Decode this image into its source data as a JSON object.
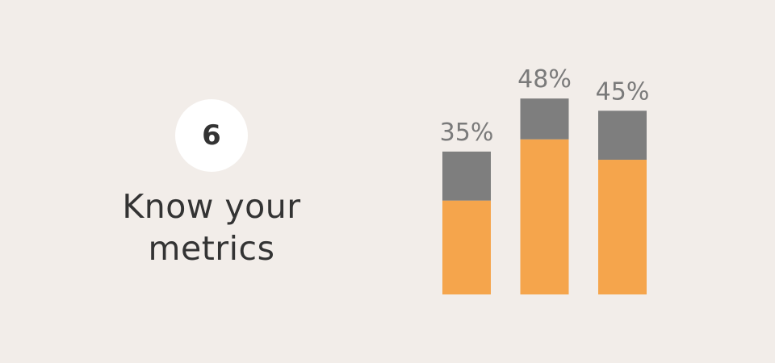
{
  "step": {
    "number": "6"
  },
  "headline": {
    "line1": "Know your",
    "line2": "metrics"
  },
  "colors": {
    "background": "#f2ede9",
    "badge": "#ffffff",
    "text": "#333333",
    "base_segment": "#f5a54c",
    "top_segment": "#7e7e7e",
    "label": "#7a7a7a"
  },
  "chart_data": {
    "type": "bar",
    "stacked": true,
    "categories": [
      "",
      "",
      ""
    ],
    "labels": [
      "35%",
      "48%",
      "45%"
    ],
    "series": [
      {
        "name": "",
        "values": [
          23,
          38,
          33
        ],
        "color": "#f5a54c"
      },
      {
        "name": "",
        "values": [
          12,
          10,
          12
        ],
        "color": "#7e7e7e"
      }
    ],
    "ylim": [
      0,
      50
    ],
    "grid": false,
    "axes_visible": false,
    "title": "",
    "xlabel": "",
    "ylabel": ""
  }
}
